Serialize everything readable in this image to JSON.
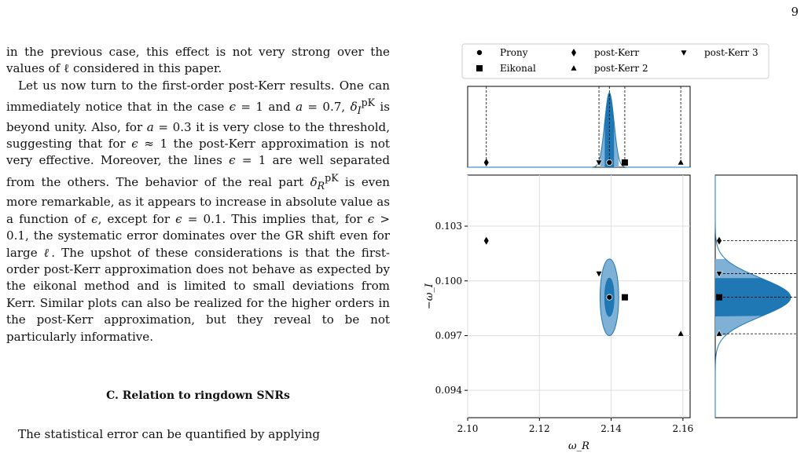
{
  "page": {
    "number": "9"
  },
  "text": {
    "p1": "in the previous case, this effect is not very strong over the values of ℓ considered in this paper.",
    "p2": "Let us now turn to the first-order post-Kerr results. One can immediately notice that in the case ϵ = 1 and a = 0.7, δ_I^pK is beyond unity. Also, for a = 0.3 it is very close to the threshold, suggesting that for ϵ ≈ 1 the post-Kerr approximation is not very effective. Moreover, the lines ϵ = 1 are well separated from the others. The behavior of the real part δ_R^pK is even more remarkable, as it appears to increase in absolute value as a function of ϵ, except for ϵ = 0.1. This implies that, for ϵ > 0.1, the systematic error dominates over the GR shift even for large ℓ. The upshot of these considerations is that the first-order post-Kerr approximation does not behave as expected by the eikonal method and is limited to small deviations from Kerr. Similar plots can also be realized for the higher orders in the post-Kerr approximation, but they reveal to be not particularly informative.",
    "section_heading": "C.   Relation to ringdown SNRs",
    "p3": "The statistical error can be quantified by applying"
  },
  "chart_data": {
    "type": "scatter",
    "xlabel": "ω_R",
    "ylabel": "−ω_I",
    "xlim": [
      2.1,
      2.162
    ],
    "ylim": [
      0.0925,
      0.1058
    ],
    "xticks": [
      "2.10",
      "2.12",
      "2.14",
      "2.16"
    ],
    "yticks": [
      "0.094",
      "0.097",
      "0.100",
      "0.103"
    ],
    "xtick_values": [
      2.1,
      2.12,
      2.14,
      2.16
    ],
    "ytick_values": [
      0.094,
      0.097,
      0.1,
      0.103
    ],
    "grid": true,
    "legend_position": "top",
    "series": [
      {
        "name": "Prony",
        "marker": "circle",
        "x": 2.1395,
        "y": 0.0991
      },
      {
        "name": "Eikonal",
        "marker": "square",
        "x": 2.1438,
        "y": 0.0991
      },
      {
        "name": "post-Kerr",
        "marker": "diamond",
        "x": 2.1052,
        "y": 0.1022
      },
      {
        "name": "post-Kerr 2",
        "marker": "triangle-up",
        "x": 2.1594,
        "y": 0.0971
      },
      {
        "name": "post-Kerr 3",
        "marker": "triangle-down",
        "x": 2.1366,
        "y": 0.1004
      }
    ],
    "posterior": {
      "center_x": 2.1395,
      "center_y": 0.0991,
      "sigma_x": 0.0013,
      "sigma_y": 0.00105,
      "inner_region": "1-sigma",
      "outer_region": "2-sigma"
    },
    "colors": {
      "inner": "#1f77b4",
      "outer": "#7fb1d7",
      "line": "#1f77b4",
      "marker": "#000000",
      "grid": "#dddddd"
    }
  }
}
